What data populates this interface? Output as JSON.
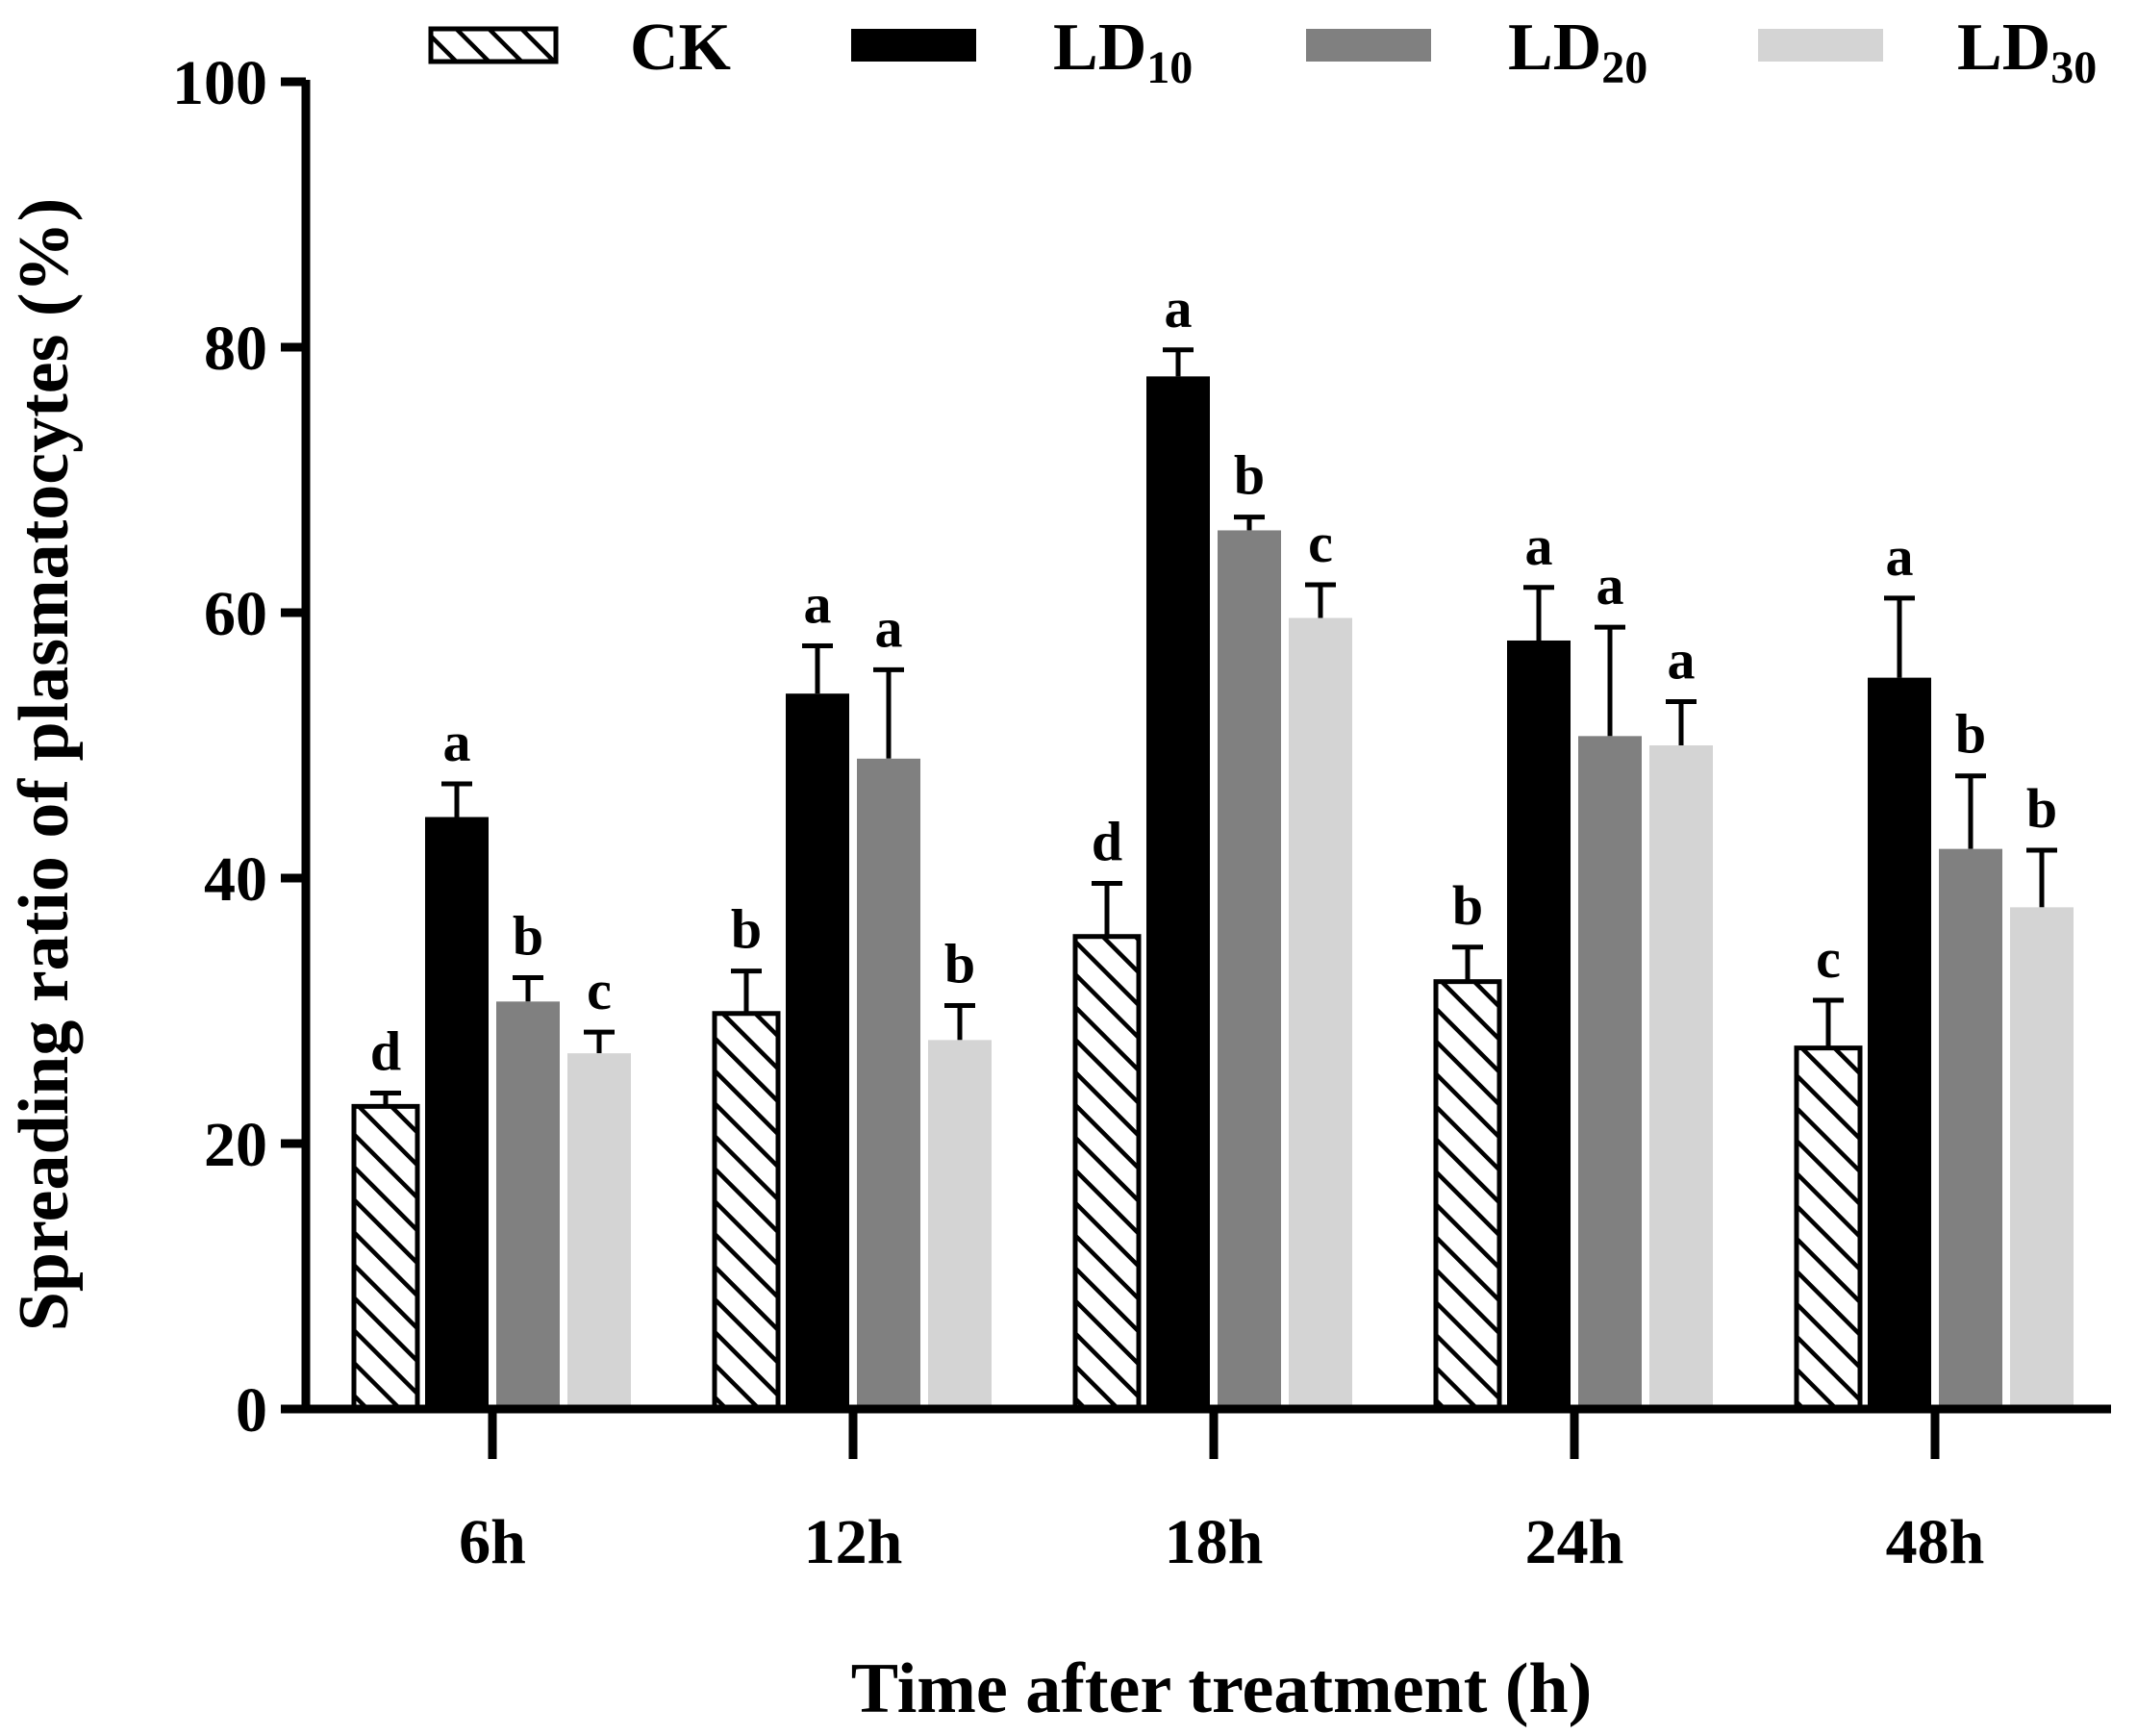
{
  "chart_data": {
    "type": "bar",
    "xlabel": "Time after treatment (h)",
    "ylabel": "Spreading ratio of plasmatocytes (%)",
    "ylim": [
      0,
      100
    ],
    "yticks": [
      0,
      20,
      40,
      60,
      80,
      100
    ],
    "yticks_text": [
      "0",
      "20",
      "40",
      "60",
      "80",
      "100"
    ],
    "categories": [
      "6h",
      "12h",
      "18h",
      "24h",
      "48h"
    ],
    "legend_position": "top",
    "series": [
      {
        "name": "CK",
        "legend_main": "CK",
        "legend_sub": "",
        "style": "hatch",
        "color": "#ffffff",
        "values": [
          22.8,
          29.8,
          35.6,
          32.2,
          27.2
        ],
        "errors": [
          1.0,
          3.2,
          4.0,
          2.6,
          3.6
        ],
        "letters": [
          "d",
          "b",
          "d",
          "b",
          "c"
        ]
      },
      {
        "name": "LD10",
        "legend_main": "LD",
        "legend_sub": "10",
        "style": "solid",
        "color": "#000000",
        "values": [
          44.6,
          53.9,
          77.8,
          57.9,
          55.1
        ],
        "errors": [
          2.5,
          3.6,
          2.0,
          4.0,
          6.0
        ],
        "letters": [
          "a",
          "a",
          "a",
          "a",
          "a"
        ]
      },
      {
        "name": "LD20",
        "legend_main": "LD",
        "legend_sub": "20",
        "style": "solid",
        "color": "#808080",
        "values": [
          30.7,
          49.0,
          66.2,
          50.7,
          42.2
        ],
        "errors": [
          1.8,
          6.7,
          1.0,
          8.2,
          5.5
        ],
        "letters": [
          "b",
          "a",
          "b",
          "a",
          "b"
        ]
      },
      {
        "name": "LD30",
        "legend_main": "LD",
        "legend_sub": "30",
        "style": "solid",
        "color": "#d4d4d4",
        "values": [
          26.8,
          27.8,
          59.6,
          50.0,
          37.8
        ],
        "errors": [
          1.6,
          2.6,
          2.5,
          3.3,
          4.3
        ],
        "letters": [
          "c",
          "b",
          "c",
          "a",
          "b"
        ]
      }
    ]
  }
}
